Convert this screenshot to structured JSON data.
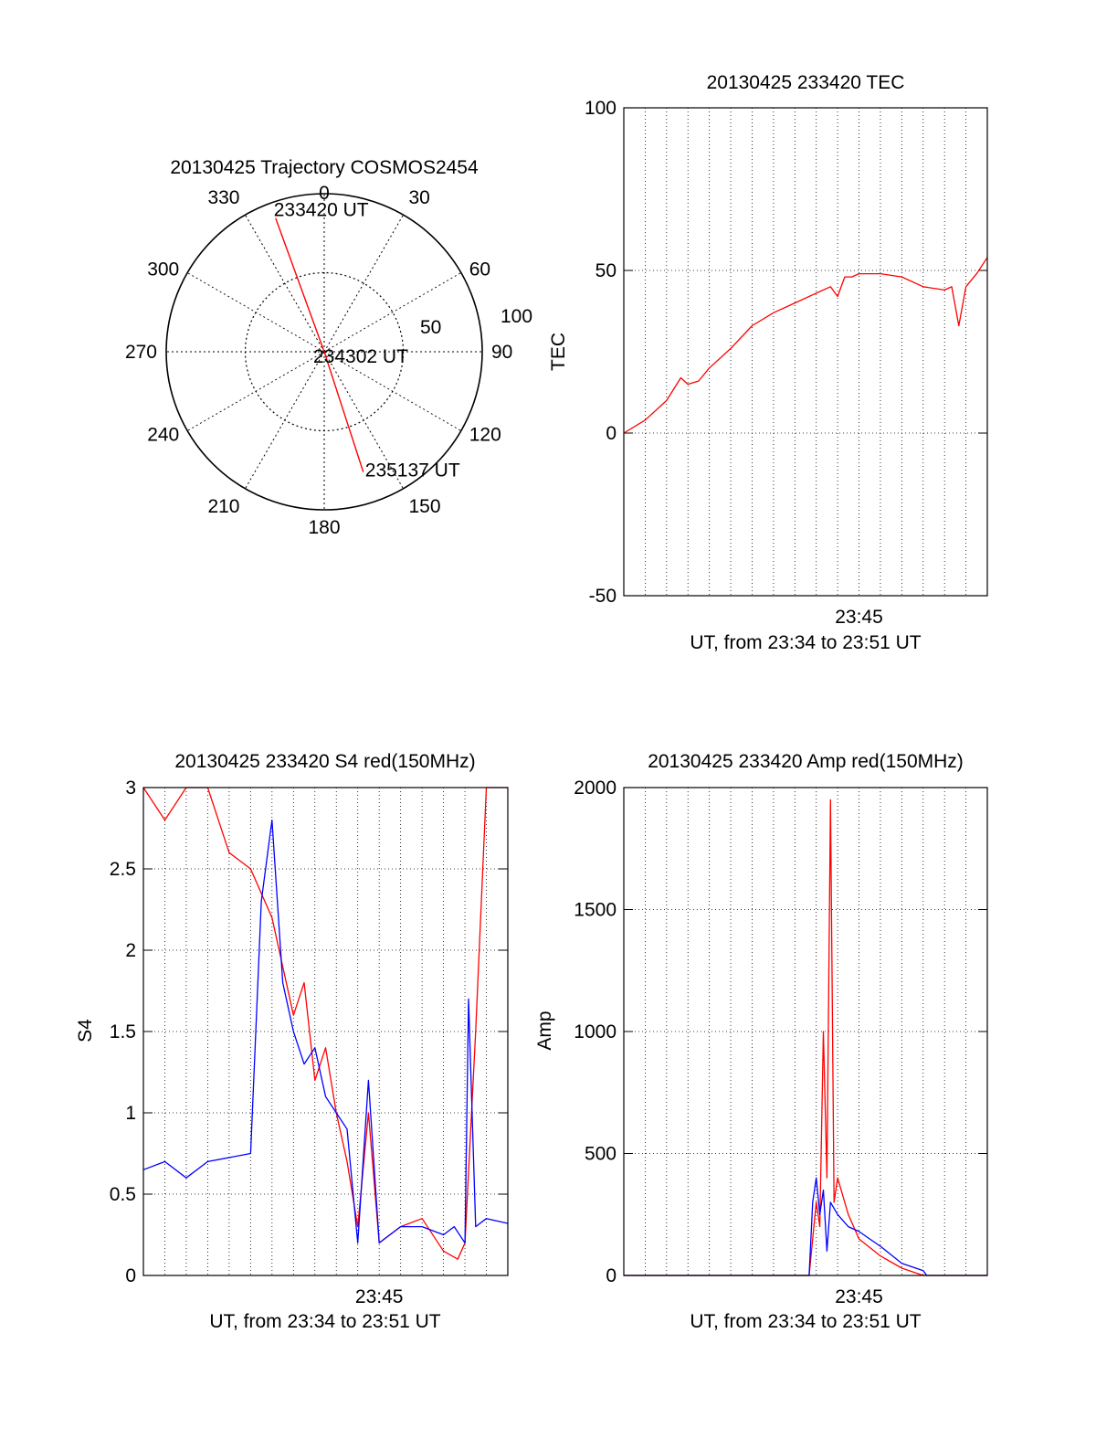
{
  "chart_data": [
    {
      "id": "trajectory",
      "type": "polar",
      "title": "20130425 Trajectory COSMOS2454",
      "angle_labels": [
        "0",
        "30",
        "60",
        "90",
        "120",
        "150",
        "180",
        "210",
        "240",
        "270",
        "300",
        "330"
      ],
      "radius_labels": [
        "50",
        "100"
      ],
      "radius_max": 100,
      "grid": true,
      "trajectory": {
        "color": "#ff0000",
        "points": [
          {
            "azimuth": 340,
            "elevation": 0.0,
            "label": "233420 UT"
          },
          {
            "azimuth": 0,
            "elevation": 90.0,
            "label": "234302 UT"
          },
          {
            "azimuth": 162,
            "elevation": 10.0,
            "label": "235137 UT"
          }
        ]
      }
    },
    {
      "id": "tec",
      "type": "line",
      "title": "20130425 233420 TEC",
      "ylabel": "TEC",
      "xlabel": "UT, from 23:34 to 23:51 UT",
      "x_range": [
        "23:34:00",
        "23:51:00"
      ],
      "xticks": [
        {
          "x": "23:45:00",
          "label": "23:45"
        }
      ],
      "ylim": [
        -50,
        100
      ],
      "yticks": [
        "-50",
        "0",
        "50",
        "100"
      ],
      "grid": true,
      "series": [
        {
          "color": "#ff0000",
          "x": [
            "23:34:00",
            "23:35:00",
            "23:36:00",
            "23:36:40",
            "23:37:00",
            "23:37:30",
            "23:38:00",
            "23:39:00",
            "23:40:00",
            "23:41:00",
            "23:42:00",
            "23:43:00",
            "23:43:40",
            "23:44:00",
            "23:44:20",
            "23:44:40",
            "23:45:00",
            "23:46:00",
            "23:47:00",
            "23:48:00",
            "23:49:00",
            "23:49:20",
            "23:49:40",
            "23:50:00",
            "23:50:30",
            "23:51:00"
          ],
          "y": [
            0,
            4,
            10,
            17,
            15,
            16,
            20,
            26,
            33,
            37,
            40,
            43,
            45,
            42,
            48,
            48,
            49,
            49,
            48,
            45,
            44,
            45,
            33,
            45,
            49,
            54
          ]
        }
      ]
    },
    {
      "id": "s4",
      "type": "line",
      "title": "20130425 233420 S4 red(150MHz)",
      "ylabel": "S4",
      "xlabel": "UT, from 23:34 to 23:51 UT",
      "x_range": [
        "23:34:00",
        "23:51:00"
      ],
      "xticks": [
        {
          "x": "23:45:00",
          "label": "23:45"
        }
      ],
      "ylim": [
        0,
        3
      ],
      "yticks": [
        "0",
        "0.5",
        "1",
        "1.5",
        "2",
        "2.5",
        "3"
      ],
      "grid": true,
      "series": [
        {
          "color": "#ff0000",
          "x": [
            "23:34:00",
            "23:35:00",
            "23:36:00",
            "23:37:00",
            "23:38:00",
            "23:39:00",
            "23:40:00",
            "23:41:00",
            "23:41:30",
            "23:42:00",
            "23:42:30",
            "23:43:00",
            "23:43:30",
            "23:44:00",
            "23:44:30",
            "23:45:00",
            "23:46:00",
            "23:47:00",
            "23:48:00",
            "23:48:40",
            "23:49:00",
            "23:49:30",
            "23:50:00",
            "23:51:00"
          ],
          "y": [
            3.0,
            2.8,
            3.0,
            3.0,
            2.6,
            2.5,
            2.2,
            1.6,
            1.8,
            1.2,
            1.4,
            1.0,
            0.7,
            0.3,
            1.0,
            0.2,
            0.3,
            0.35,
            0.15,
            0.1,
            0.2,
            1.5,
            3.0,
            3.0
          ]
        },
        {
          "color": "#0000ff",
          "x": [
            "23:34:00",
            "23:35:00",
            "23:36:00",
            "23:37:00",
            "23:39:00",
            "23:39:30",
            "23:40:00",
            "23:40:30",
            "23:41:00",
            "23:41:30",
            "23:42:00",
            "23:42:30",
            "23:43:00",
            "23:43:30",
            "23:44:00",
            "23:44:30",
            "23:45:00",
            "23:46:00",
            "23:47:00",
            "23:48:00",
            "23:48:30",
            "23:49:00",
            "23:49:10",
            "23:49:30",
            "23:50:00",
            "23:51:00"
          ],
          "y": [
            0.65,
            0.7,
            0.6,
            0.7,
            0.75,
            2.3,
            2.8,
            1.8,
            1.5,
            1.3,
            1.4,
            1.1,
            1.0,
            0.9,
            0.2,
            1.2,
            0.2,
            0.3,
            0.3,
            0.25,
            0.3,
            0.2,
            1.7,
            0.3,
            0.35,
            0.32
          ]
        }
      ]
    },
    {
      "id": "amp",
      "type": "line",
      "title": "20130425 233420 Amp red(150MHz)",
      "ylabel": "Amp",
      "xlabel": "UT, from 23:34 to 23:51 UT",
      "x_range": [
        "23:34:00",
        "23:51:00"
      ],
      "xticks": [
        {
          "x": "23:45:00",
          "label": "23:45"
        }
      ],
      "ylim": [
        0,
        2000
      ],
      "yticks": [
        "0",
        "500",
        "1000",
        "1500",
        "2000"
      ],
      "grid": true,
      "series": [
        {
          "color": "#ff0000",
          "x": [
            "23:34:00",
            "23:42:40",
            "23:42:50",
            "23:43:00",
            "23:43:10",
            "23:43:20",
            "23:43:30",
            "23:43:40",
            "23:43:50",
            "23:44:00",
            "23:44:30",
            "23:45:00",
            "23:46:00",
            "23:47:00",
            "23:48:00",
            "23:51:00"
          ],
          "y": [
            0,
            0,
            150,
            300,
            200,
            1000,
            400,
            1950,
            300,
            400,
            250,
            150,
            80,
            30,
            0,
            0
          ]
        },
        {
          "color": "#0000ff",
          "x": [
            "23:34:00",
            "23:42:40",
            "23:42:50",
            "23:43:00",
            "23:43:10",
            "23:43:20",
            "23:43:30",
            "23:43:40",
            "23:44:00",
            "23:44:30",
            "23:45:00",
            "23:45:30",
            "23:46:00",
            "23:47:00",
            "23:48:00",
            "23:48:10",
            "23:51:00"
          ],
          "y": [
            0,
            0,
            300,
            400,
            250,
            350,
            100,
            300,
            250,
            200,
            180,
            150,
            120,
            50,
            20,
            0,
            0
          ]
        }
      ]
    }
  ]
}
